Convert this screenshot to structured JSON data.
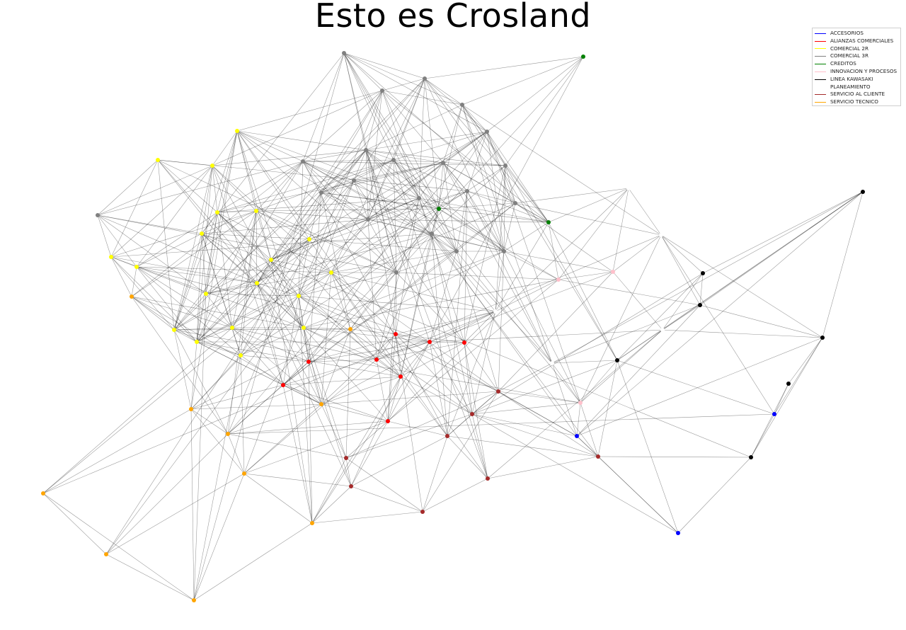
{
  "title": "Esto es Crosland",
  "legend": [
    {
      "label": "ACCESORIOS",
      "color": "#0000ff"
    },
    {
      "label": "ALIANZAS COMERCIALES",
      "color": "#ff0000"
    },
    {
      "label": "COMERCIAL 2R",
      "color": "#ffff00"
    },
    {
      "label": "COMERCIAL 3R",
      "color": "#808080"
    },
    {
      "label": "CREDITOS",
      "color": "#008000"
    },
    {
      "label": "INNOVACION Y PROCESOS",
      "color": "#ffc0cb"
    },
    {
      "label": "LINEA KAWASAKI",
      "color": "#000000"
    },
    {
      "label": "PLANEAMIENTO",
      "color": "#ffffff"
    },
    {
      "label": "SERVICIO AL CLIENTE",
      "color": "#a52a2a"
    },
    {
      "label": "SERVICIO TECNICO",
      "color": "#ffa500"
    }
  ]
}
